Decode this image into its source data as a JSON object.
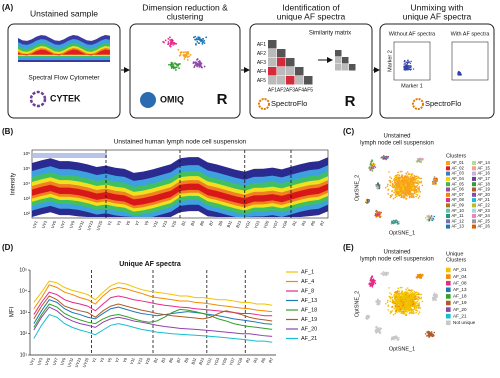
{
  "chart_data": {
    "type": "line",
    "label": "(D)",
    "title": "Unique AF spectra",
    "y_label": "MFI",
    "log_scale": true,
    "categories": [
      "UV1",
      "UV3",
      "UV5",
      "UV7",
      "UV9",
      "UV11",
      "UV13",
      "UV15",
      "V1",
      "V3",
      "V5",
      "V7",
      "V9",
      "V11",
      "V13",
      "V15",
      "B1",
      "B3",
      "B5",
      "B7",
      "B9",
      "B11",
      "B13",
      "YG1",
      "YG3",
      "YG5",
      "YG7",
      "YG9",
      "R1",
      "R3",
      "R5",
      "R7"
    ],
    "ylim": [
      10,
      100000
    ],
    "yticks": [
      {
        "value": 10,
        "label": "10¹"
      },
      {
        "value": 100,
        "label": "10²"
      },
      {
        "value": 1000,
        "label": "10³"
      },
      {
        "value": 10000,
        "label": "10⁴"
      },
      {
        "value": 100000,
        "label": "10⁵"
      }
    ],
    "series": [
      {
        "name": "AF_1",
        "color": "#f2c200",
        "values": [
          3000,
          9000,
          30000,
          25000,
          15000,
          11000,
          9000,
          7000,
          4000,
          9000,
          18000,
          25000,
          22000,
          16000,
          12000,
          10000,
          9000,
          8000,
          7000,
          6000,
          6000,
          5000,
          5000,
          4500,
          4000,
          4000,
          3500,
          3000,
          3000,
          2500,
          2500,
          2200
        ]
      },
      {
        "name": "AF_4",
        "color": "#f08c00",
        "values": [
          1500,
          5000,
          20000,
          15000,
          9000,
          7000,
          5000,
          4000,
          2500,
          6000,
          12000,
          15000,
          13000,
          10000,
          8000,
          6000,
          5000,
          4500,
          4000,
          3500,
          3500,
          3000,
          2800,
          2500,
          2200,
          2000,
          1800,
          1600,
          1500,
          1300,
          1200,
          1100
        ]
      },
      {
        "name": "AF_8",
        "color": "#e7298a",
        "values": [
          800,
          3000,
          9000,
          7000,
          4000,
          3000,
          2500,
          2000,
          1200,
          2500,
          5000,
          6000,
          5000,
          4000,
          3500,
          3000,
          2500,
          2200,
          2000,
          1800,
          1700,
          1500,
          1400,
          1300,
          1200,
          1100,
          1000,
          900,
          900,
          800,
          700,
          700
        ]
      },
      {
        "name": "AF_13",
        "color": "#1f78b4",
        "values": [
          300,
          1200,
          4000,
          3000,
          1500,
          1000,
          800,
          600,
          500,
          900,
          1500,
          1800,
          1400,
          1100,
          900,
          800,
          700,
          800,
          900,
          1000,
          1100,
          1000,
          900,
          800,
          700,
          600,
          500,
          450,
          400,
          350,
          300,
          280
        ]
      },
      {
        "name": "AF_18",
        "color": "#33a02c",
        "values": [
          200,
          800,
          2500,
          1800,
          900,
          600,
          450,
          350,
          300,
          500,
          700,
          800,
          650,
          500,
          400,
          350,
          400,
          600,
          1000,
          1400,
          1300,
          1100,
          900,
          700,
          500,
          400,
          300,
          250,
          220,
          200,
          180,
          160
        ]
      },
      {
        "name": "AF_19",
        "color": "#b15928",
        "values": [
          500,
          2000,
          6000,
          4000,
          2000,
          1500,
          1200,
          1000,
          600,
          1200,
          2000,
          2500,
          2000,
          1600,
          1300,
          1100,
          900,
          800,
          700,
          650,
          600,
          550,
          500,
          600,
          900,
          1200,
          1000,
          800,
          600,
          500,
          450,
          400
        ]
      },
      {
        "name": "AF_20",
        "color": "#8e44ad",
        "values": [
          150,
          600,
          1800,
          1200,
          600,
          400,
          300,
          250,
          200,
          350,
          500,
          600,
          500,
          400,
          350,
          300,
          250,
          220,
          200,
          180,
          170,
          160,
          150,
          140,
          130,
          120,
          110,
          100,
          100,
          90,
          80,
          75
        ]
      },
      {
        "name": "AF_21",
        "color": "#17becf",
        "values": [
          60,
          250,
          800,
          600,
          300,
          200,
          150,
          120,
          90,
          150,
          250,
          300,
          250,
          200,
          160,
          140,
          120,
          110,
          100,
          95,
          90,
          85,
          80,
          75,
          70,
          65,
          60,
          55,
          50,
          45,
          45,
          40
        ]
      }
    ]
  },
  "figure": {
    "panel_a": {
      "label": "(A)",
      "steps": [
        {
          "title_lines": [
            "Unstained sample"
          ],
          "texts": [
            "Spectral Flow Cytometer",
            "CYTEK"
          ]
        },
        {
          "title_lines": [
            "Dimension reduction &",
            "clustering"
          ],
          "texts": [
            "OMIQ",
            "R"
          ]
        },
        {
          "title_lines": [
            "Identification of",
            "unique AF spectra"
          ],
          "texts": [
            "Similarity matrix",
            "SpectroFlo",
            "R"
          ]
        },
        {
          "title_lines": [
            "Unmixing with",
            "unique AF spectra"
          ],
          "texts": [
            "Without AF spectra",
            "With AF spectra",
            "Marker 1",
            "Marker 2",
            "SpectroFlo"
          ]
        }
      ],
      "matrix_labels": [
        "AF1",
        "AF2",
        "AF3",
        "AF4",
        "AF5"
      ]
    },
    "panel_b": {
      "label": "(B)",
      "title": "Unstained human lymph node cell suspension",
      "y_label": "Intensity",
      "yticks": [
        "10⁶",
        "10⁵",
        "10⁴",
        "10³",
        "10²"
      ]
    },
    "panel_c": {
      "label": "(C)",
      "title_lines": [
        "Unstained",
        "lymph node cell suspension"
      ],
      "x_label": "OptSNE_1",
      "y_label": "OptSNE_2",
      "legend_title": "Clusters",
      "clusters": [
        {
          "name": "AF_01",
          "color": "#f7a21b"
        },
        {
          "name": "AF_02",
          "color": "#e41a1c"
        },
        {
          "name": "AF_03",
          "color": "#377eb8"
        },
        {
          "name": "AF_04",
          "color": "#f5d300"
        },
        {
          "name": "AF_05",
          "color": "#4daf4a"
        },
        {
          "name": "AF_06",
          "color": "#984ea3"
        },
        {
          "name": "AF_07",
          "color": "#ff7f00"
        },
        {
          "name": "AF_08",
          "color": "#e7298a"
        },
        {
          "name": "AF_09",
          "color": "#a6761d"
        },
        {
          "name": "AF_10",
          "color": "#66c2a5"
        },
        {
          "name": "AF_11",
          "color": "#1b9e77"
        },
        {
          "name": "AF_12",
          "color": "#7570b3"
        },
        {
          "name": "AF_13",
          "color": "#1f78b4"
        },
        {
          "name": "AF_14",
          "color": "#b2df8a"
        },
        {
          "name": "AF_15",
          "color": "#fb9a99"
        },
        {
          "name": "AF_16",
          "color": "#cab2d6"
        },
        {
          "name": "AF_17",
          "color": "#6a3d9a"
        },
        {
          "name": "AF_18",
          "color": "#33a02c"
        },
        {
          "name": "AF_19",
          "color": "#b15928"
        },
        {
          "name": "AF_20",
          "color": "#8e44ad"
        },
        {
          "name": "AF_21",
          "color": "#17becf"
        },
        {
          "name": "AF_22",
          "color": "#bcbd22"
        },
        {
          "name": "AF_23",
          "color": "#9edae5"
        },
        {
          "name": "AF_24",
          "color": "#f781bf"
        },
        {
          "name": "AF_25",
          "color": "#999999"
        },
        {
          "name": "AF_26",
          "color": "#d95f02"
        }
      ]
    },
    "panel_e": {
      "label": "(E)",
      "title_lines": [
        "Unstained",
        "lymph node cell suspension"
      ],
      "x_label": "OptSNE_1",
      "y_label": "OptSNE_2",
      "legend_title_lines": [
        "Unique",
        "Clusters"
      ],
      "clusters": [
        {
          "name": "AF_01",
          "color": "#f2c200"
        },
        {
          "name": "AF_04",
          "color": "#f08c00"
        },
        {
          "name": "AF_08",
          "color": "#e7298a"
        },
        {
          "name": "AF_13",
          "color": "#1f78b4"
        },
        {
          "name": "AF_18",
          "color": "#33a02c"
        },
        {
          "name": "AF_19",
          "color": "#b15928"
        },
        {
          "name": "AF_20",
          "color": "#8e44ad"
        },
        {
          "name": "AF_21",
          "color": "#17becf"
        },
        {
          "name": "Not unique",
          "color": "#c8c8c8"
        }
      ]
    }
  }
}
